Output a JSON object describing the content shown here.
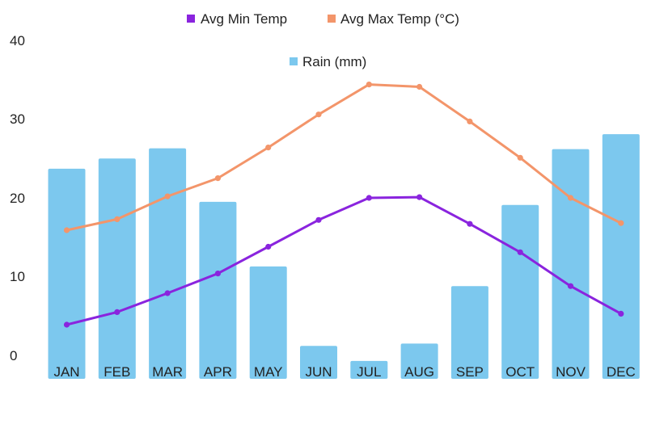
{
  "chart_data": {
    "type": "bar+line",
    "categories": [
      "JAN",
      "FEB",
      "MAR",
      "APR",
      "MAY",
      "JUN",
      "JUL",
      "AUG",
      "SEP",
      "OCT",
      "NOV",
      "DEC"
    ],
    "series": [
      {
        "name": "Rain (mm)",
        "kind": "bar",
        "color": "#7CC8EE",
        "values": [
          23.8,
          25.1,
          26.4,
          19.6,
          11.4,
          1.3,
          -0.6,
          1.6,
          8.9,
          19.2,
          26.3,
          28.2
        ]
      },
      {
        "name": "Avg Min Temp",
        "kind": "line",
        "color": "#8A24DE",
        "values": [
          4.0,
          5.6,
          8.0,
          10.5,
          13.9,
          17.3,
          20.1,
          20.2,
          16.8,
          13.2,
          8.9,
          5.4
        ]
      },
      {
        "name": "Avg Max Temp (°C)",
        "kind": "line",
        "color": "#F3956A",
        "values": [
          16.0,
          17.4,
          20.3,
          22.6,
          26.5,
          30.7,
          34.5,
          34.2,
          29.8,
          25.2,
          20.1,
          16.9
        ]
      }
    ],
    "legend": [
      {
        "label": "Avg Min Temp",
        "color": "#8A24DE"
      },
      {
        "label": "Avg Max Temp (°C)",
        "color": "#F3956A"
      },
      {
        "label": "Rain (mm)",
        "color": "#7CC8EE"
      }
    ],
    "yticks": [
      "0",
      "10",
      "20",
      "30",
      "40"
    ],
    "ylim": [
      0,
      40
    ],
    "title": "",
    "xlabel": "",
    "ylabel": "",
    "grid": false,
    "legend_position": "top-center"
  }
}
